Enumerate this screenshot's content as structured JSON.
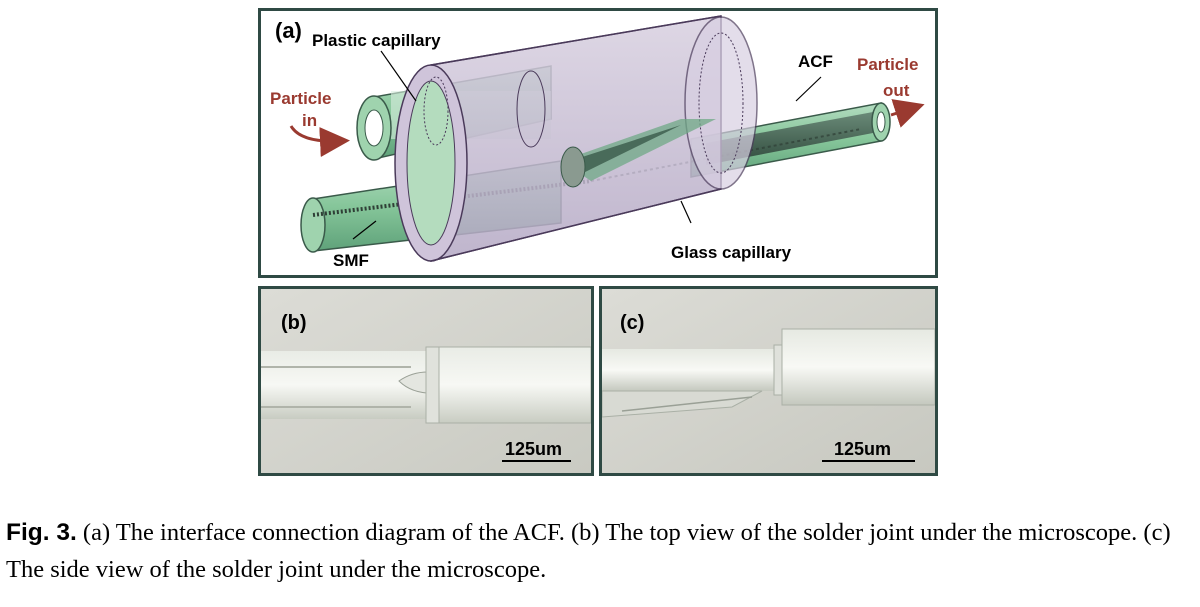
{
  "figure": {
    "panel_a": {
      "tag": "(a)",
      "labels": {
        "plastic_capillary": "Plastic capillary",
        "particle_in_1": "Particle",
        "particle_in_2": "in",
        "acf": "ACF",
        "particle_out_1": "Particle",
        "particle_out_2": "out",
        "smf": "SMF",
        "glass_capillary": "Glass capillary"
      },
      "colors": {
        "fiber_green": "#8fcba2",
        "capillary_purple": "#c9bfd4",
        "arrow_red": "#9a3a30",
        "frame": "#2f4a44"
      }
    },
    "panel_b": {
      "tag": "(b)",
      "scale": "125um"
    },
    "panel_c": {
      "tag": "(c)",
      "scale": "125um"
    }
  },
  "caption": {
    "label": "Fig. 3.",
    "text": " (a) The interface connection diagram of the ACF. (b) The top view of the solder joint under the microscope. (c) The side view of the solder joint under the microscope."
  }
}
